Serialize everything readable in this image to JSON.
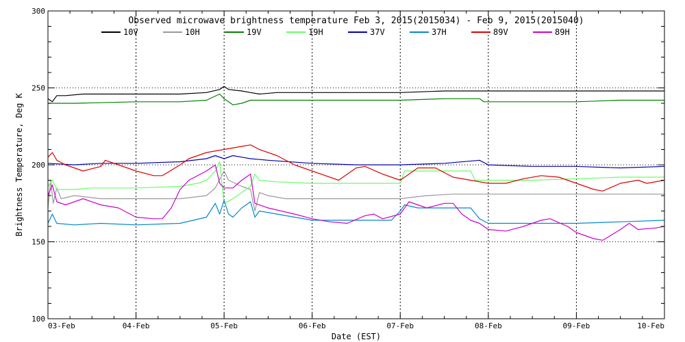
{
  "chart_data": {
    "type": "line",
    "title": "Observed microwave brightness temperature Feb  3, 2015(2015034) - Feb  9, 2015(2015040)",
    "xlabel": "Date (EST)",
    "ylabel": "Brightness Temperature, Deg K",
    "xlim": [
      0,
      7
    ],
    "ylim": [
      100,
      300
    ],
    "x_ticks": [
      {
        "x": 0,
        "label": "03-Feb"
      },
      {
        "x": 1,
        "label": "04-Feb"
      },
      {
        "x": 2,
        "label": "05-Feb"
      },
      {
        "x": 3,
        "label": "06-Feb"
      },
      {
        "x": 4,
        "label": "07-Feb"
      },
      {
        "x": 5,
        "label": "08-Feb"
      },
      {
        "x": 6,
        "label": "09-Feb"
      },
      {
        "x": 7,
        "label": "10-Feb"
      }
    ],
    "y_ticks": [
      100,
      150,
      200,
      250,
      300
    ],
    "dotted_hlines": [
      150,
      200,
      250
    ],
    "grid": "dotted vertical lines at each day",
    "legend_position": "top",
    "series": [
      {
        "name": "10V",
        "color": "#000000",
        "points": [
          [
            0,
            243
          ],
          [
            0.05,
            241
          ],
          [
            0.1,
            245
          ],
          [
            0.2,
            245
          ],
          [
            0.4,
            246
          ],
          [
            1.0,
            246
          ],
          [
            1.5,
            246
          ],
          [
            1.8,
            247
          ],
          [
            1.95,
            249
          ],
          [
            2.0,
            251
          ],
          [
            2.05,
            249
          ],
          [
            2.2,
            248
          ],
          [
            2.3,
            247
          ],
          [
            2.4,
            246
          ],
          [
            2.6,
            247
          ],
          [
            3.0,
            247
          ],
          [
            3.5,
            247
          ],
          [
            4.0,
            247
          ],
          [
            4.5,
            248
          ],
          [
            5.0,
            248
          ],
          [
            5.5,
            248
          ],
          [
            6.0,
            248
          ],
          [
            6.5,
            248
          ],
          [
            7.0,
            248
          ]
        ]
      },
      {
        "name": "10H",
        "color": "#999999",
        "points": [
          [
            0,
            172
          ],
          [
            0.03,
            190
          ],
          [
            0.06,
            175
          ],
          [
            0.1,
            185
          ],
          [
            0.15,
            178
          ],
          [
            0.3,
            180
          ],
          [
            0.6,
            178
          ],
          [
            1.0,
            178
          ],
          [
            1.5,
            178
          ],
          [
            1.8,
            180
          ],
          [
            1.9,
            185
          ],
          [
            2.0,
            196
          ],
          [
            2.05,
            190
          ],
          [
            2.2,
            186
          ],
          [
            2.3,
            184
          ],
          [
            2.35,
            170
          ],
          [
            2.4,
            182
          ],
          [
            2.5,
            180
          ],
          [
            2.7,
            178
          ],
          [
            3.0,
            178
          ],
          [
            3.5,
            178
          ],
          [
            4.0,
            178
          ],
          [
            4.3,
            180
          ],
          [
            4.6,
            181
          ],
          [
            5.0,
            181
          ],
          [
            5.5,
            181
          ],
          [
            6.0,
            181
          ],
          [
            6.5,
            181
          ],
          [
            7.0,
            181
          ]
        ]
      },
      {
        "name": "19V",
        "color": "#008000",
        "points": [
          [
            0,
            240
          ],
          [
            0.3,
            240
          ],
          [
            1.0,
            241
          ],
          [
            1.5,
            241
          ],
          [
            1.8,
            242
          ],
          [
            1.95,
            246
          ],
          [
            2.0,
            243
          ],
          [
            2.1,
            239
          ],
          [
            2.2,
            240
          ],
          [
            2.3,
            242
          ],
          [
            2.5,
            242
          ],
          [
            3.0,
            242
          ],
          [
            3.5,
            242
          ],
          [
            4.0,
            242
          ],
          [
            4.5,
            243
          ],
          [
            4.9,
            243
          ],
          [
            4.95,
            241
          ],
          [
            5.5,
            241
          ],
          [
            6.0,
            241
          ],
          [
            6.5,
            242
          ],
          [
            7.0,
            242
          ]
        ]
      },
      {
        "name": "19H",
        "color": "#66ff66",
        "points": [
          [
            0,
            186
          ],
          [
            0.05,
            190
          ],
          [
            0.1,
            184
          ],
          [
            0.3,
            184
          ],
          [
            0.5,
            185
          ],
          [
            1.0,
            185
          ],
          [
            1.5,
            186
          ],
          [
            1.7,
            188
          ],
          [
            1.8,
            190
          ],
          [
            1.9,
            196
          ],
          [
            1.95,
            202
          ],
          [
            2.0,
            175
          ],
          [
            2.1,
            178
          ],
          [
            2.2,
            182
          ],
          [
            2.3,
            186
          ],
          [
            2.35,
            194
          ],
          [
            2.4,
            190
          ],
          [
            2.6,
            189
          ],
          [
            3.0,
            188
          ],
          [
            3.5,
            188
          ],
          [
            4.0,
            188
          ],
          [
            4.05,
            196
          ],
          [
            4.5,
            196
          ],
          [
            4.8,
            196
          ],
          [
            4.85,
            190
          ],
          [
            5.0,
            190
          ],
          [
            5.5,
            190
          ],
          [
            6.0,
            191
          ],
          [
            6.5,
            192
          ],
          [
            7.0,
            192
          ]
        ]
      },
      {
        "name": "37V",
        "color": "#0000aa",
        "points": [
          [
            0,
            201
          ],
          [
            0.3,
            200
          ],
          [
            0.6,
            201
          ],
          [
            1.0,
            201
          ],
          [
            1.5,
            202
          ],
          [
            1.8,
            204
          ],
          [
            1.9,
            206
          ],
          [
            2.0,
            204
          ],
          [
            2.1,
            206
          ],
          [
            2.2,
            205
          ],
          [
            2.3,
            204
          ],
          [
            2.5,
            203
          ],
          [
            3.0,
            201
          ],
          [
            3.5,
            200
          ],
          [
            4.0,
            200
          ],
          [
            4.5,
            201
          ],
          [
            4.9,
            203
          ],
          [
            5.0,
            200
          ],
          [
            5.5,
            199
          ],
          [
            6.0,
            199
          ],
          [
            6.5,
            198
          ],
          [
            7.0,
            199
          ]
        ]
      },
      {
        "name": "37H",
        "color": "#0088cc",
        "points": [
          [
            0,
            162
          ],
          [
            0.05,
            168
          ],
          [
            0.1,
            162
          ],
          [
            0.3,
            161
          ],
          [
            0.6,
            162
          ],
          [
            1.0,
            161
          ],
          [
            1.5,
            162
          ],
          [
            1.8,
            166
          ],
          [
            1.9,
            175
          ],
          [
            1.95,
            168
          ],
          [
            2.0,
            177
          ],
          [
            2.05,
            168
          ],
          [
            2.1,
            166
          ],
          [
            2.2,
            172
          ],
          [
            2.3,
            176
          ],
          [
            2.35,
            166
          ],
          [
            2.4,
            170
          ],
          [
            2.6,
            168
          ],
          [
            3.0,
            164
          ],
          [
            3.5,
            164
          ],
          [
            3.9,
            164
          ],
          [
            4.0,
            170
          ],
          [
            4.05,
            174
          ],
          [
            4.2,
            172
          ],
          [
            4.5,
            172
          ],
          [
            4.8,
            172
          ],
          [
            4.9,
            165
          ],
          [
            5.0,
            162
          ],
          [
            5.5,
            162
          ],
          [
            6.0,
            162
          ],
          [
            6.5,
            163
          ],
          [
            7.0,
            164
          ]
        ]
      },
      {
        "name": "89V",
        "color": "#dd0000",
        "points": [
          [
            0,
            205
          ],
          [
            0.05,
            208
          ],
          [
            0.1,
            203
          ],
          [
            0.2,
            200
          ],
          [
            0.4,
            196
          ],
          [
            0.6,
            199
          ],
          [
            0.65,
            203
          ],
          [
            0.8,
            200
          ],
          [
            1.0,
            196
          ],
          [
            1.2,
            193
          ],
          [
            1.3,
            193
          ],
          [
            1.5,
            200
          ],
          [
            1.6,
            204
          ],
          [
            1.8,
            208
          ],
          [
            2.0,
            210
          ],
          [
            2.2,
            212
          ],
          [
            2.3,
            213
          ],
          [
            2.4,
            210
          ],
          [
            2.6,
            206
          ],
          [
            2.8,
            200
          ],
          [
            3.0,
            196
          ],
          [
            3.3,
            190
          ],
          [
            3.5,
            198
          ],
          [
            3.6,
            199
          ],
          [
            3.8,
            194
          ],
          [
            4.0,
            190
          ],
          [
            4.2,
            198
          ],
          [
            4.4,
            198
          ],
          [
            4.6,
            192
          ],
          [
            4.8,
            190
          ],
          [
            5.0,
            188
          ],
          [
            5.2,
            188
          ],
          [
            5.4,
            191
          ],
          [
            5.6,
            193
          ],
          [
            5.8,
            192
          ],
          [
            6.0,
            188
          ],
          [
            6.2,
            184
          ],
          [
            6.3,
            183
          ],
          [
            6.5,
            188
          ],
          [
            6.7,
            190
          ],
          [
            6.8,
            188
          ],
          [
            7.0,
            190
          ]
        ]
      },
      {
        "name": "89H",
        "color": "#cc00cc",
        "points": [
          [
            0,
            180
          ],
          [
            0.05,
            187
          ],
          [
            0.1,
            176
          ],
          [
            0.2,
            174
          ],
          [
            0.3,
            176
          ],
          [
            0.4,
            178
          ],
          [
            0.6,
            174
          ],
          [
            0.8,
            172
          ],
          [
            1.0,
            166
          ],
          [
            1.2,
            165
          ],
          [
            1.3,
            165
          ],
          [
            1.4,
            172
          ],
          [
            1.5,
            184
          ],
          [
            1.6,
            190
          ],
          [
            1.8,
            196
          ],
          [
            1.9,
            200
          ],
          [
            1.95,
            188
          ],
          [
            2.0,
            185
          ],
          [
            2.1,
            185
          ],
          [
            2.2,
            190
          ],
          [
            2.3,
            194
          ],
          [
            2.35,
            175
          ],
          [
            2.5,
            172
          ],
          [
            2.8,
            168
          ],
          [
            3.0,
            165
          ],
          [
            3.2,
            163
          ],
          [
            3.4,
            162
          ],
          [
            3.6,
            167
          ],
          [
            3.7,
            168
          ],
          [
            3.8,
            165
          ],
          [
            4.0,
            168
          ],
          [
            4.1,
            176
          ],
          [
            4.3,
            172
          ],
          [
            4.5,
            175
          ],
          [
            4.6,
            175
          ],
          [
            4.7,
            168
          ],
          [
            4.8,
            164
          ],
          [
            4.9,
            162
          ],
          [
            5.0,
            158
          ],
          [
            5.2,
            157
          ],
          [
            5.4,
            160
          ],
          [
            5.6,
            164
          ],
          [
            5.7,
            165
          ],
          [
            5.9,
            160
          ],
          [
            6.0,
            156
          ],
          [
            6.2,
            152
          ],
          [
            6.3,
            151
          ],
          [
            6.5,
            158
          ],
          [
            6.6,
            162
          ],
          [
            6.7,
            158
          ],
          [
            6.9,
            159
          ],
          [
            7.0,
            160
          ]
        ]
      }
    ]
  }
}
